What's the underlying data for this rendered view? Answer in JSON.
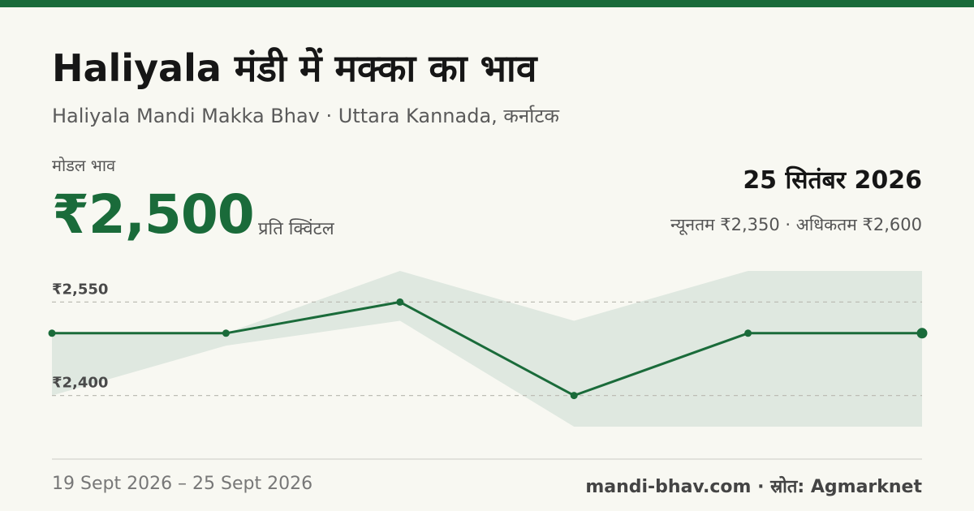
{
  "title": "Haliyala मंडी में मक्का का भाव",
  "subtitle": "Haliyala Mandi Makka Bhav · Uttara Kannada, कर्नाटक",
  "price": {
    "label": "मोडल भाव",
    "value": "₹2,500",
    "unit": "प्रति क्विंटल"
  },
  "date": "25 सितंबर 2026",
  "minmax": "न्यूनतम ₹2,350 · अधिकतम ₹2,600",
  "footer": {
    "range": "19 Sept 2026 – 25 Sept 2026",
    "source": "mandi-bhav.com · स्रोत: Agmarknet"
  },
  "colors": {
    "accent": "#1a6b3a",
    "band": "#dfe8e0",
    "grid": "#bdbdb5"
  },
  "chart_data": {
    "type": "line",
    "title": "",
    "xlabel": "",
    "ylabel": "",
    "ylim": [
      2350,
      2600
    ],
    "yticks": [
      {
        "value": 2550,
        "label": "₹2,550"
      },
      {
        "value": 2400,
        "label": "₹2,400"
      }
    ],
    "series": [
      {
        "values": [
          2500,
          2500,
          2550,
          2400,
          2500,
          2500
        ],
        "min": [
          2400,
          2480,
          2520,
          2350,
          2350,
          2350
        ],
        "max": [
          2500,
          2500,
          2600,
          2520,
          2600,
          2600
        ]
      }
    ],
    "grid": "dashed-horizontal",
    "legend": "none"
  }
}
